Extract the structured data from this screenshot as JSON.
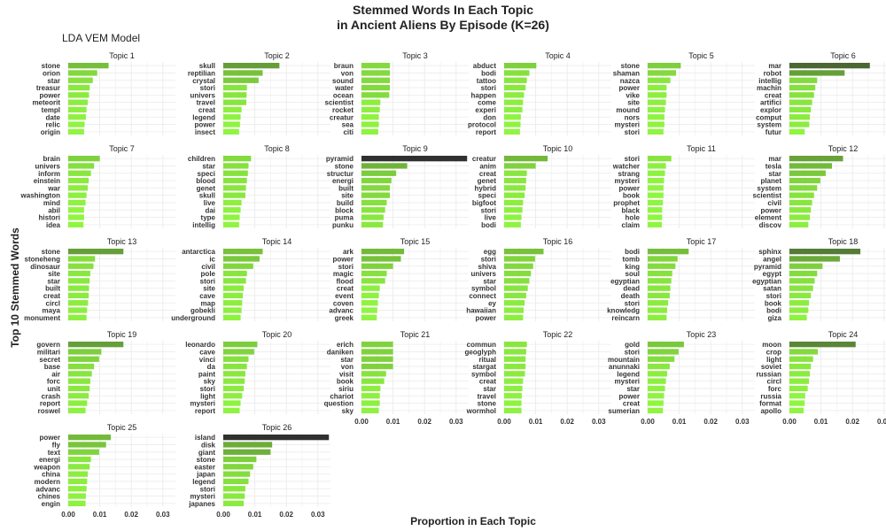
{
  "chart_data": {
    "type": "bar",
    "title_line1": "Stemmed Words In Each Topic",
    "title_line2": "in Ancient Aliens By Episode (K=26)",
    "subtitle": "LDA VEM Model",
    "xlabel": "Proportion in Each Topic",
    "ylabel": "Top 10 Stemmed Words",
    "xlim": [
      0,
      0.034
    ],
    "x_ticks": [
      "0.00",
      "0.01",
      "0.02",
      "0.03"
    ],
    "grid": true,
    "colors": {
      "low": "#90f540",
      "high": "#303030"
    },
    "facets": [
      {
        "title": "Topic 1",
        "words": [
          "stone",
          "orion",
          "star",
          "treasur",
          "power",
          "meteorit",
          "templ",
          "date",
          "relic",
          "origin"
        ],
        "values": [
          0.0128,
          0.0092,
          0.0078,
          0.0068,
          0.0066,
          0.0062,
          0.0058,
          0.0056,
          0.0052,
          0.005
        ]
      },
      {
        "title": "Topic 2",
        "words": [
          "skull",
          "reptilian",
          "crystal",
          "stori",
          "univers",
          "travel",
          "creat",
          "legend",
          "power",
          "insect"
        ],
        "values": [
          0.0178,
          0.0125,
          0.0112,
          0.0075,
          0.0074,
          0.0073,
          0.0058,
          0.0055,
          0.0053,
          0.005
        ]
      },
      {
        "title": "Topic 3",
        "words": [
          "braun",
          "von",
          "sound",
          "water",
          "ocean",
          "scientist",
          "rocket",
          "creatur",
          "sea",
          "citi"
        ],
        "values": [
          0.009,
          0.009,
          0.009,
          0.009,
          0.0088,
          0.006,
          0.0058,
          0.0055,
          0.0055,
          0.0053
        ]
      },
      {
        "title": "Topic 4",
        "words": [
          "abduct",
          "bodi",
          "tattoo",
          "stori",
          "happen",
          "come",
          "experi",
          "don",
          "protocol",
          "report"
        ],
        "values": [
          0.0102,
          0.008,
          0.0072,
          0.0068,
          0.0063,
          0.006,
          0.0058,
          0.0053,
          0.0052,
          0.005
        ]
      },
      {
        "title": "Topic 5",
        "words": [
          "stone",
          "shaman",
          "nazca",
          "power",
          "vike",
          "site",
          "mound",
          "nors",
          "mysteri",
          "stori"
        ],
        "values": [
          0.0105,
          0.009,
          0.0072,
          0.006,
          0.006,
          0.0058,
          0.0055,
          0.0053,
          0.0053,
          0.005
        ]
      },
      {
        "title": "Topic 6",
        "words": [
          "mar",
          "robot",
          "intellig",
          "machin",
          "creat",
          "artifici",
          "explor",
          "comput",
          "system",
          "futur"
        ],
        "values": [
          0.0255,
          0.0175,
          0.0088,
          0.0082,
          0.0078,
          0.0072,
          0.0068,
          0.0065,
          0.0063,
          0.0048
        ]
      },
      {
        "title": "Topic 7",
        "words": [
          "brain",
          "univers",
          "inform",
          "einstein",
          "war",
          "washington",
          "mind",
          "abil",
          "histori",
          "idea"
        ],
        "values": [
          0.01,
          0.0082,
          0.0072,
          0.0065,
          0.0062,
          0.0058,
          0.0055,
          0.005,
          0.005,
          0.0048
        ]
      },
      {
        "title": "Topic 8",
        "words": [
          "children",
          "star",
          "speci",
          "blood",
          "genet",
          "skull",
          "live",
          "dai",
          "type",
          "intellig"
        ],
        "values": [
          0.0088,
          0.008,
          0.0078,
          0.0075,
          0.0072,
          0.007,
          0.0058,
          0.0055,
          0.0052,
          0.005
        ]
      },
      {
        "title": "Topic 9",
        "words": [
          "pyramid",
          "stone",
          "structur",
          "energi",
          "built",
          "site",
          "build",
          "block",
          "puma",
          "punku"
        ],
        "values": [
          0.0335,
          0.0145,
          0.011,
          0.0095,
          0.009,
          0.009,
          0.008,
          0.0075,
          0.007,
          0.0068
        ]
      },
      {
        "title": "Topic 10",
        "words": [
          "creatur",
          "anim",
          "creat",
          "genet",
          "hybrid",
          "speci",
          "bigfoot",
          "stori",
          "live",
          "bodi"
        ],
        "values": [
          0.0138,
          0.01,
          0.0072,
          0.007,
          0.0068,
          0.0065,
          0.006,
          0.0058,
          0.0055,
          0.0053
        ]
      },
      {
        "title": "Topic 11",
        "words": [
          "stori",
          "watcher",
          "strang",
          "mysteri",
          "power",
          "book",
          "prophet",
          "black",
          "hole",
          "claim"
        ],
        "values": [
          0.0075,
          0.0058,
          0.0055,
          0.0052,
          0.005,
          0.005,
          0.0048,
          0.0046,
          0.0046,
          0.0045
        ]
      },
      {
        "title": "Topic 12",
        "words": [
          "mar",
          "tesla",
          "star",
          "planet",
          "system",
          "scientist",
          "civil",
          "power",
          "element",
          "discov"
        ],
        "values": [
          0.017,
          0.0135,
          0.0115,
          0.0098,
          0.0088,
          0.0078,
          0.0072,
          0.0068,
          0.0065,
          0.006
        ]
      },
      {
        "title": "Topic 13",
        "words": [
          "stone",
          "stoneheng",
          "dinosaur",
          "site",
          "star",
          "built",
          "creat",
          "circl",
          "maya",
          "monument"
        ],
        "values": [
          0.0175,
          0.0085,
          0.008,
          0.007,
          0.0068,
          0.0066,
          0.0065,
          0.0063,
          0.006,
          0.0058
        ]
      },
      {
        "title": "Topic 14",
        "words": [
          "antarctica",
          "ic",
          "civil",
          "pole",
          "stori",
          "site",
          "cave",
          "map",
          "gobekli",
          "underground"
        ],
        "values": [
          0.0125,
          0.0115,
          0.0095,
          0.0075,
          0.0072,
          0.0065,
          0.0062,
          0.006,
          0.0058,
          0.0055
        ]
      },
      {
        "title": "Topic 15",
        "words": [
          "ark",
          "power",
          "stori",
          "magic",
          "flood",
          "creat",
          "event",
          "coven",
          "advanc",
          "greek"
        ],
        "values": [
          0.0135,
          0.0125,
          0.01,
          0.008,
          0.0075,
          0.0058,
          0.0055,
          0.0052,
          0.005,
          0.0048
        ]
      },
      {
        "title": "Topic 16",
        "words": [
          "egg",
          "stori",
          "shiva",
          "univers",
          "star",
          "symbol",
          "connect",
          "ey",
          "hawaiian",
          "power"
        ],
        "values": [
          0.0125,
          0.0098,
          0.0092,
          0.0085,
          0.008,
          0.0075,
          0.007,
          0.0065,
          0.0062,
          0.006
        ]
      },
      {
        "title": "Topic 17",
        "words": [
          "bodi",
          "tomb",
          "king",
          "soul",
          "egyptian",
          "dead",
          "death",
          "stori",
          "knowledg",
          "reincarn"
        ],
        "values": [
          0.013,
          0.0095,
          0.0088,
          0.0078,
          0.0075,
          0.0072,
          0.007,
          0.0065,
          0.0062,
          0.006
        ]
      },
      {
        "title": "Topic 18",
        "words": [
          "sphinx",
          "angel",
          "pyramid",
          "egypt",
          "egyptian",
          "satan",
          "stori",
          "book",
          "bodi",
          "giza"
        ],
        "values": [
          0.0225,
          0.016,
          0.0105,
          0.0088,
          0.008,
          0.0075,
          0.0068,
          0.0062,
          0.006,
          0.0055
        ]
      },
      {
        "title": "Topic 19",
        "words": [
          "govern",
          "militari",
          "secret",
          "base",
          "air",
          "forc",
          "unit",
          "crash",
          "report",
          "roswel"
        ],
        "values": [
          0.0175,
          0.0105,
          0.0098,
          0.0082,
          0.0075,
          0.007,
          0.0068,
          0.0065,
          0.006,
          0.0055
        ]
      },
      {
        "title": "Topic 20",
        "words": [
          "leonardo",
          "cave",
          "vinci",
          "da",
          "paint",
          "sky",
          "stori",
          "light",
          "mysteri",
          "report"
        ],
        "values": [
          0.0108,
          0.0098,
          0.008,
          0.0075,
          0.007,
          0.0068,
          0.0065,
          0.006,
          0.0055,
          0.0052
        ]
      },
      {
        "title": "Topic 21",
        "words": [
          "erich",
          "daniken",
          "star",
          "von",
          "visit",
          "book",
          "siriu",
          "chariot",
          "question",
          "sky"
        ],
        "values": [
          0.01,
          0.01,
          0.01,
          0.01,
          0.0078,
          0.0072,
          0.006,
          0.0058,
          0.0058,
          0.0055
        ]
      },
      {
        "title": "Topic 22",
        "words": [
          "commun",
          "geoglyph",
          "ritual",
          "stargat",
          "symbol",
          "creat",
          "star",
          "travel",
          "stone",
          "wormhol"
        ],
        "values": [
          0.0072,
          0.007,
          0.0068,
          0.0068,
          0.0066,
          0.006,
          0.0058,
          0.0056,
          0.0055,
          0.0055
        ]
      },
      {
        "title": "Topic 23",
        "words": [
          "gold",
          "stori",
          "mountain",
          "anunnaki",
          "legend",
          "mysteri",
          "star",
          "power",
          "creat",
          "sumerian"
        ],
        "values": [
          0.0115,
          0.0098,
          0.0085,
          0.007,
          0.0062,
          0.0058,
          0.0055,
          0.0052,
          0.005,
          0.0048
        ]
      },
      {
        "title": "Topic 24",
        "words": [
          "moon",
          "crop",
          "light",
          "soviet",
          "russian",
          "circl",
          "forc",
          "russia",
          "format",
          "apollo"
        ],
        "values": [
          0.021,
          0.009,
          0.0075,
          0.0068,
          0.0065,
          0.0062,
          0.0058,
          0.005,
          0.0048,
          0.0045
        ]
      },
      {
        "title": "Topic 25",
        "words": [
          "power",
          "fly",
          "text",
          "energi",
          "weapon",
          "china",
          "modern",
          "advanc",
          "chines",
          "engin"
        ],
        "values": [
          0.0135,
          0.012,
          0.0098,
          0.0072,
          0.0068,
          0.0062,
          0.006,
          0.0058,
          0.0056,
          0.0055
        ]
      },
      {
        "title": "Topic 26",
        "words": [
          "island",
          "disk",
          "giant",
          "stone",
          "easter",
          "japan",
          "legend",
          "stori",
          "mysteri",
          "japanes"
        ],
        "values": [
          0.0335,
          0.0155,
          0.015,
          0.0105,
          0.0095,
          0.0085,
          0.008,
          0.007,
          0.0068,
          0.0065
        ]
      }
    ]
  }
}
